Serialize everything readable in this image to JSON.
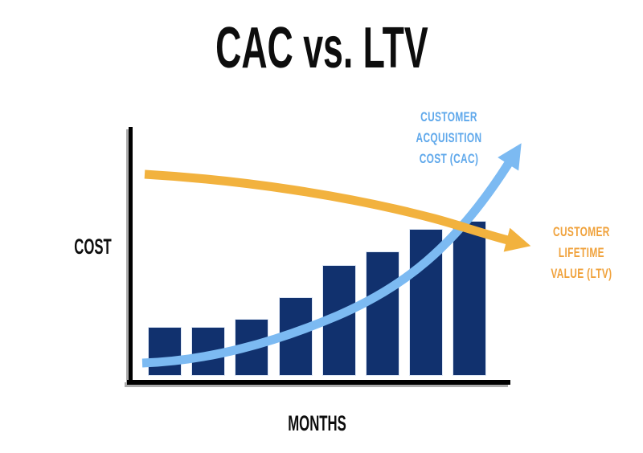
{
  "title": "CAC vs. LTV",
  "chart_data": {
    "type": "bar",
    "title": "CAC vs. LTV",
    "xlabel": "MONTHS",
    "ylabel": "COST",
    "bar_color": "#11316E",
    "values_relative": [
      31,
      31,
      36,
      50,
      71,
      80,
      95,
      100
    ],
    "ylim": [
      0,
      100
    ],
    "gridlines": false,
    "tick_labels_shown": false,
    "legend_position": "none",
    "overlays": [
      {
        "type": "line",
        "name": "Customer Acquisition Cost (CAC)",
        "label_text": "CUSTOMER\nACQUISITION\nCOST (CAC)",
        "color": "#7CBAF2",
        "label_color": "#5FA8EB",
        "trend": "rising exponential curve ending in up-right arrow",
        "points_relative": [
          [
            3,
            8
          ],
          [
            27,
            16
          ],
          [
            49,
            25
          ],
          [
            70,
            41
          ],
          [
            84,
            53
          ],
          [
            100,
            92
          ]
        ]
      },
      {
        "type": "line",
        "name": "Customer Lifetime Value (LTV)",
        "label_text": "CUSTOMER\nLIFETIME\nVALUE (LTV)",
        "color": "#F2B23E",
        "label_color": "#F0A23C",
        "trend": "gently falling curve ending in down-right arrow",
        "points_relative": [
          [
            4,
            81
          ],
          [
            39,
            74
          ],
          [
            61,
            69
          ],
          [
            82,
            61
          ],
          [
            100,
            53
          ]
        ]
      }
    ]
  },
  "colors": {
    "background": "#FFFFFF",
    "axis": "#000000",
    "title_text": "#0D0D0D"
  }
}
